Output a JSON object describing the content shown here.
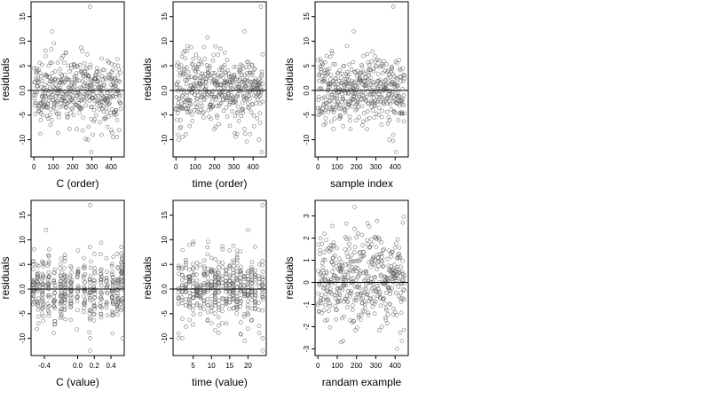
{
  "chart_data": [
    {
      "type": "scatter",
      "xlabel": "C (order)",
      "ylabel": "residuals",
      "xlim": [
        -15,
        468
      ],
      "ylim": [
        -13.5,
        18
      ],
      "xticks": [
        0,
        100,
        200,
        300,
        400
      ],
      "xtick_labels": [
        "0",
        "100",
        "200",
        "300",
        "400"
      ],
      "yticks": [
        -10,
        -5,
        0,
        5,
        10,
        15
      ],
      "ytick_labels": [
        "-10",
        "-5",
        "0.0",
        "5",
        "10",
        "15"
      ],
      "hline": 0,
      "grid": false,
      "point_color": "#555555",
      "generator": {
        "kind": "order",
        "n": 450,
        "x_start": 0,
        "x_step": 1,
        "sd": 3.5,
        "seed": 11
      },
      "points": [
        [
          290,
          17
        ],
        [
          297,
          -12.5
        ],
        [
          95,
          12
        ],
        [
          280,
          -10
        ],
        [
          305,
          -9
        ],
        [
          350,
          -9
        ],
        [
          410,
          -9.5
        ]
      ]
    },
    {
      "type": "scatter",
      "xlabel": "time (order)",
      "ylabel": "residuals",
      "xlim": [
        -15,
        468
      ],
      "ylim": [
        -13.5,
        18
      ],
      "xticks": [
        0,
        100,
        200,
        300,
        400
      ],
      "xtick_labels": [
        "0",
        "100",
        "200",
        "300",
        "400"
      ],
      "yticks": [
        -10,
        -5,
        0,
        5,
        10,
        15
      ],
      "ytick_labels": [
        "-10",
        "-5",
        "0.0",
        "5",
        "10",
        "15"
      ],
      "hline": 0,
      "grid": false,
      "point_color": "#555555",
      "generator": {
        "kind": "order",
        "n": 450,
        "x_start": 0,
        "x_step": 1,
        "sd": 3.5,
        "seed": 23
      },
      "points": [
        [
          440,
          17
        ],
        [
          445,
          -12.5
        ],
        [
          355,
          12
        ],
        [
          10,
          -9
        ],
        [
          15,
          -10
        ],
        [
          430,
          -10
        ],
        [
          60,
          9
        ]
      ]
    },
    {
      "type": "scatter",
      "xlabel": "sample index",
      "ylabel": "residuals",
      "xlim": [
        -15,
        468
      ],
      "ylim": [
        -13.5,
        18
      ],
      "xticks": [
        0,
        100,
        200,
        300,
        400
      ],
      "xtick_labels": [
        "0",
        "100",
        "200",
        "300",
        "400"
      ],
      "yticks": [
        -10,
        -5,
        0,
        5,
        10,
        15
      ],
      "ytick_labels": [
        "-10",
        "-5",
        "0.0",
        "5",
        "10",
        "15"
      ],
      "hline": 0,
      "grid": false,
      "point_color": "#555555",
      "generator": {
        "kind": "order",
        "n": 450,
        "x_start": 0,
        "x_step": 1,
        "sd": 3.3,
        "seed": 37
      },
      "points": [
        [
          390,
          17
        ],
        [
          405,
          -12.5
        ],
        [
          185,
          12
        ],
        [
          370,
          -10
        ],
        [
          390,
          -9
        ],
        [
          150,
          9
        ]
      ]
    },
    {
      "type": "scatter",
      "xlabel": "C (value)",
      "ylabel": "residuals",
      "xlim": [
        -0.56,
        0.56
      ],
      "ylim": [
        -13.5,
        18
      ],
      "xticks": [
        -0.4,
        0.0,
        0.2,
        0.4
      ],
      "xtick_labels": [
        "-0.4",
        "0.0",
        "0.2",
        "0.4"
      ],
      "yticks": [
        -10,
        -5,
        0,
        5,
        10,
        15
      ],
      "ytick_labels": [
        "-10",
        "-5",
        "0.0",
        "5",
        "10",
        "15"
      ],
      "hline": 0,
      "grid": false,
      "point_color": "#555555",
      "generator": {
        "kind": "columns",
        "n": 450,
        "columns": [
          -0.53,
          -0.48,
          -0.42,
          -0.35,
          -0.28,
          -0.2,
          -0.15,
          -0.08,
          0.0,
          0.08,
          0.15,
          0.2,
          0.28,
          0.35,
          0.42,
          0.48,
          0.53
        ],
        "jitter": 0.01,
        "sd": 3.5,
        "seed": 41
      },
      "points": [
        [
          0.15,
          17
        ],
        [
          0.15,
          -12.5
        ],
        [
          -0.38,
          12
        ],
        [
          0.15,
          -10
        ],
        [
          0.42,
          -9
        ]
      ]
    },
    {
      "type": "scatter",
      "xlabel": "time (value)",
      "ylabel": "residuals",
      "xlim": [
        -0.5,
        25
      ],
      "ylim": [
        -13.5,
        18
      ],
      "xticks": [
        5,
        10,
        15,
        20
      ],
      "xtick_labels": [
        "5",
        "10",
        "15",
        "20"
      ],
      "yticks": [
        -10,
        -5,
        0,
        5,
        10,
        15
      ],
      "ytick_labels": [
        "-10",
        "-5",
        "0.0",
        "5",
        "10",
        "15"
      ],
      "hline": 0,
      "grid": false,
      "point_color": "#555555",
      "generator": {
        "kind": "columns",
        "n": 450,
        "columns": [
          1,
          2,
          3,
          4,
          5,
          6,
          7,
          8,
          9,
          10,
          11,
          12,
          13,
          14,
          15,
          16,
          17,
          18,
          19,
          20,
          21,
          22,
          23,
          24
        ],
        "jitter": 0.1,
        "sd": 3.5,
        "seed": 53
      },
      "points": [
        [
          24,
          17
        ],
        [
          24,
          -12.5
        ],
        [
          20,
          12
        ],
        [
          1,
          -9
        ],
        [
          2,
          -10
        ],
        [
          24,
          -10
        ],
        [
          4,
          9
        ]
      ]
    },
    {
      "type": "scatter",
      "xlabel": "randam example",
      "ylabel": "residuals",
      "xlim": [
        -15,
        468
      ],
      "ylim": [
        -3.3,
        3.7
      ],
      "xticks": [
        0,
        100,
        200,
        300,
        400
      ],
      "xtick_labels": [
        "0",
        "100",
        "200",
        "300",
        "400"
      ],
      "yticks": [
        -3,
        -2,
        -1,
        0,
        1,
        2,
        3
      ],
      "ytick_labels": [
        "-3",
        "-2",
        "-1",
        "0",
        "1",
        "2",
        "3"
      ],
      "hline": 0,
      "grid": false,
      "point_color": "#555555",
      "generator": {
        "kind": "order",
        "n": 450,
        "x_start": 0,
        "x_step": 1,
        "sd": 1.0,
        "seed": 67
      },
      "points": [
        [
          190,
          3.4
        ],
        [
          120,
          -2.7
        ],
        [
          410,
          -3.0
        ],
        [
          440,
          2.7
        ]
      ]
    }
  ]
}
